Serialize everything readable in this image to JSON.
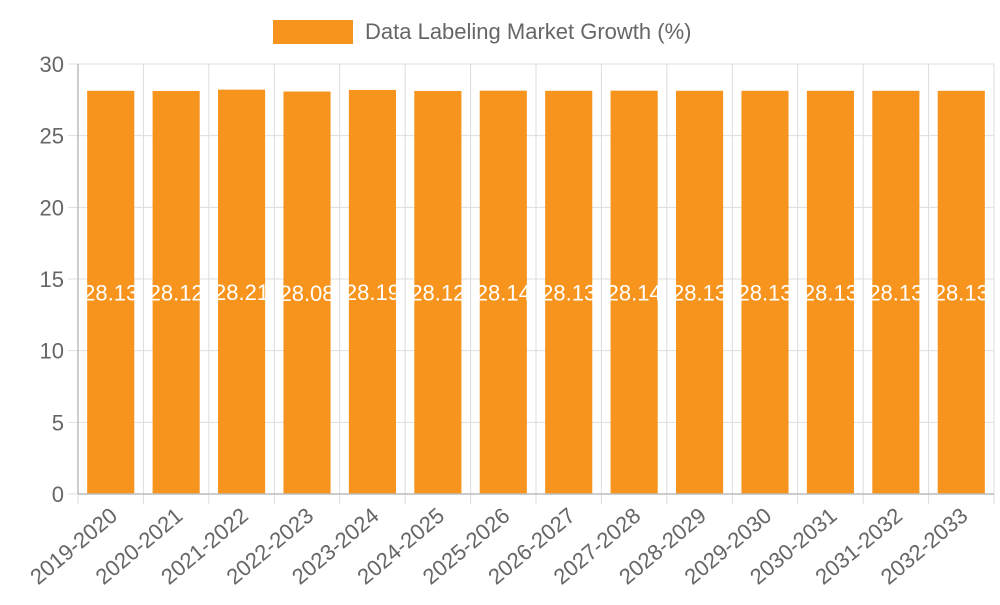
{
  "chart_data": {
    "type": "bar",
    "title": "",
    "xlabel": "",
    "ylabel": "",
    "legend_position": "top-center",
    "grid": true,
    "ylim": [
      0,
      30
    ],
    "yticks": [
      0,
      5,
      10,
      15,
      20,
      25,
      30
    ],
    "categories": [
      "2019-2020",
      "2020-2021",
      "2021-2022",
      "2022-2023",
      "2023-2024",
      "2024-2025",
      "2025-2026",
      "2026-2027",
      "2027-2028",
      "2028-2029",
      "2029-2030",
      "2030-2031",
      "2031-2032",
      "2032-2033"
    ],
    "series": [
      {
        "name": "Data Labeling Market Growth (%)",
        "color": "#f7941d",
        "values": [
          28.13,
          28.12,
          28.21,
          28.08,
          28.19,
          28.12,
          28.14,
          28.13,
          28.14,
          28.13,
          28.13,
          28.13,
          28.13,
          28.13
        ],
        "data_labels": [
          "28.13",
          "28.12",
          "28.21",
          "28.08",
          "28.19",
          "28.12",
          "28.14",
          "28.13",
          "28.14",
          "28.13",
          "28.13",
          "28.13",
          "28.13",
          "28.13"
        ]
      }
    ],
    "colors": {
      "grid": "#dddddd",
      "axis": "#bbbbbb",
      "tick_text": "#666666",
      "legend_text": "#666666",
      "data_label": "#ffffff"
    }
  }
}
